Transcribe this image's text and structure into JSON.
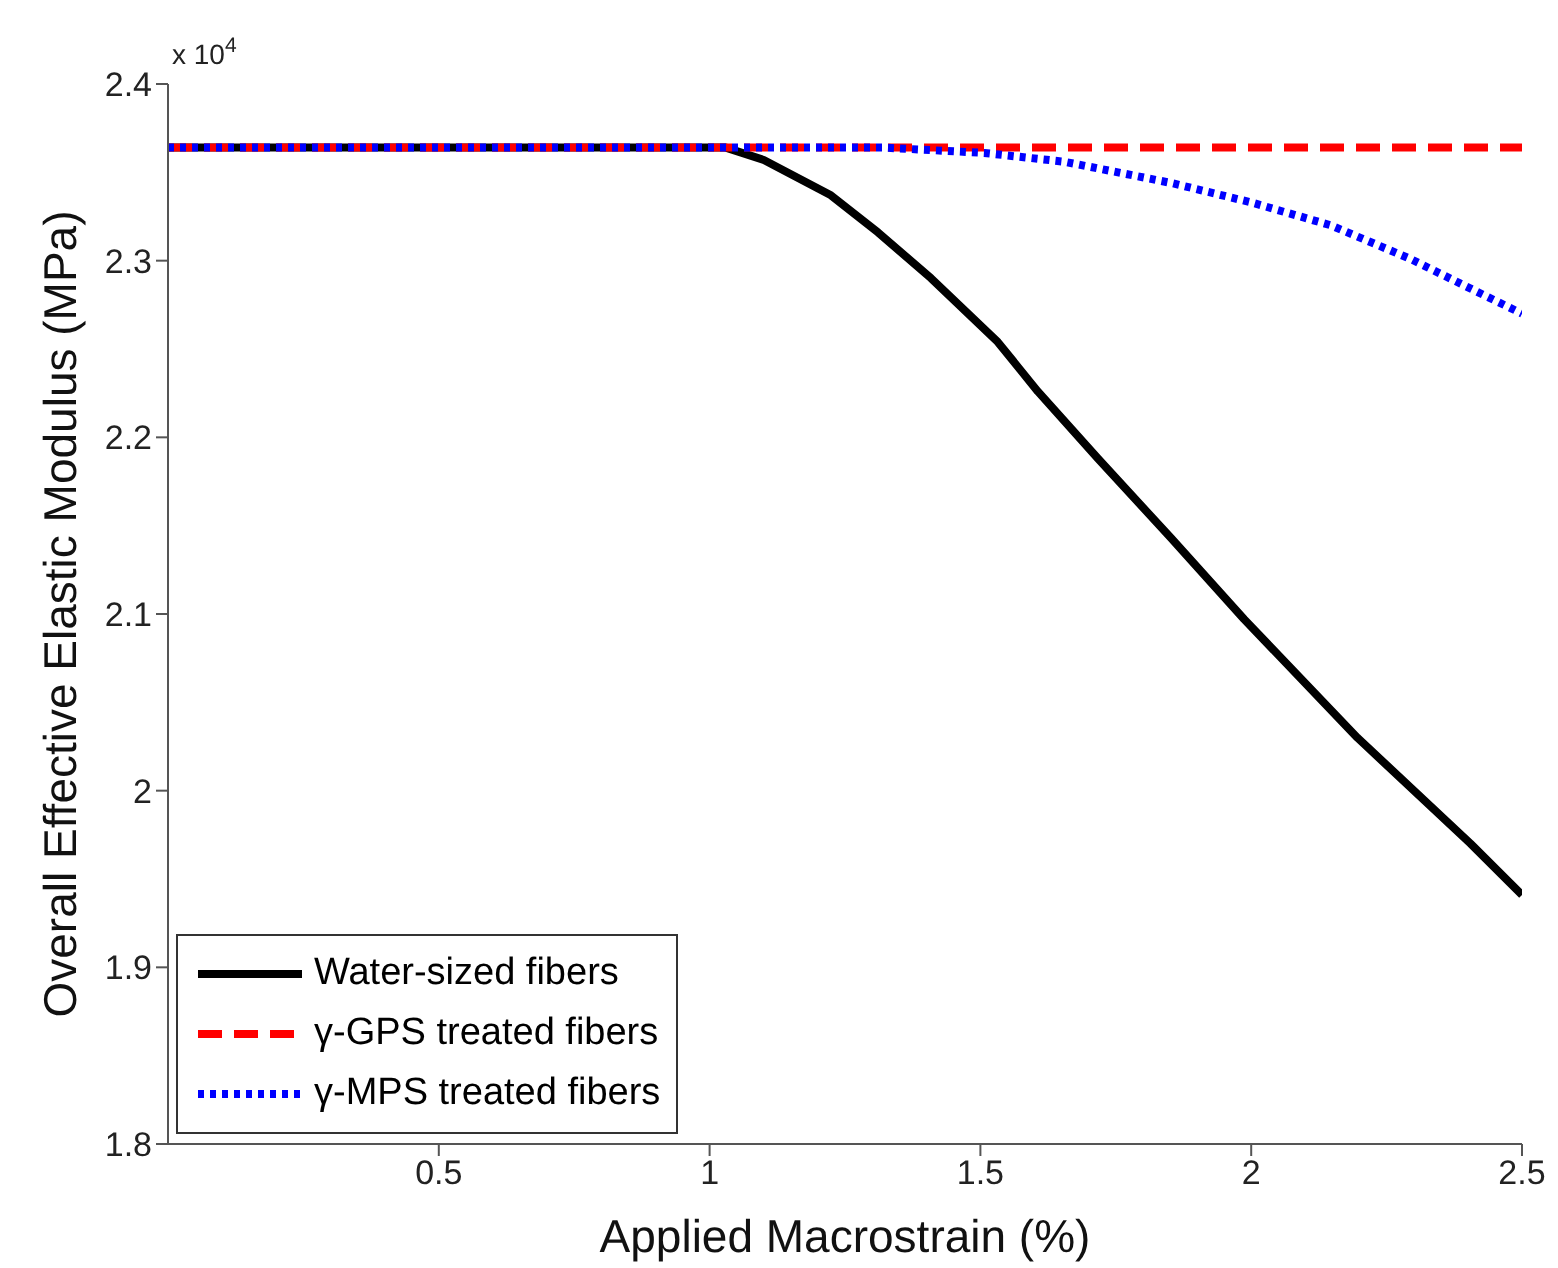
{
  "chart_data": {
    "type": "line",
    "xlabel": "Applied Macrostrain (%)",
    "ylabel": "Overall Effective Elastic Modulus (MPa)",
    "annotations": [
      "x 10$^{4}$"
    ],
    "xlim": [
      0,
      2.5
    ],
    "xticks": [
      0.5,
      1,
      1.5,
      2,
      2.5
    ],
    "ylim": [
      1.8,
      2.4
    ],
    "yticks": [
      1.8,
      1.9,
      2,
      2.1,
      2.2,
      2.3,
      2.4
    ],
    "grid": false,
    "legend": "bottom left",
    "marker": "none",
    "series": [
      {
        "name": "Water-sized fibers",
        "color": "#000000",
        "line_style": "solid",
        "x": [
          0,
          1.03,
          1.1,
          1.224,
          1.311,
          1.409,
          1.532,
          1.606,
          1.717,
          1.852,
          1.987,
          2.196,
          2.405,
          2.5
        ],
        "values": [
          2.364,
          2.364,
          2.357,
          2.337,
          2.316,
          2.29,
          2.254,
          2.226,
          2.188,
          2.143,
          2.097,
          2.03,
          1.97,
          1.941
        ]
      },
      {
        "name": "γ-GPS treated fibers",
        "color": "#ff0000",
        "line_style": "dashed",
        "x": [
          0,
          2.5
        ],
        "values": [
          2.364,
          2.364
        ]
      },
      {
        "name": "γ-MPS treated fibers",
        "color": "#0000ff",
        "line_style": "dotted",
        "x": [
          0,
          1.32,
          1.507,
          1.655,
          1.852,
          2.0,
          2.147,
          2.294,
          2.393,
          2.5
        ],
        "values": [
          2.364,
          2.364,
          2.361,
          2.356,
          2.344,
          2.333,
          2.32,
          2.301,
          2.286,
          2.27
        ]
      }
    ]
  }
}
